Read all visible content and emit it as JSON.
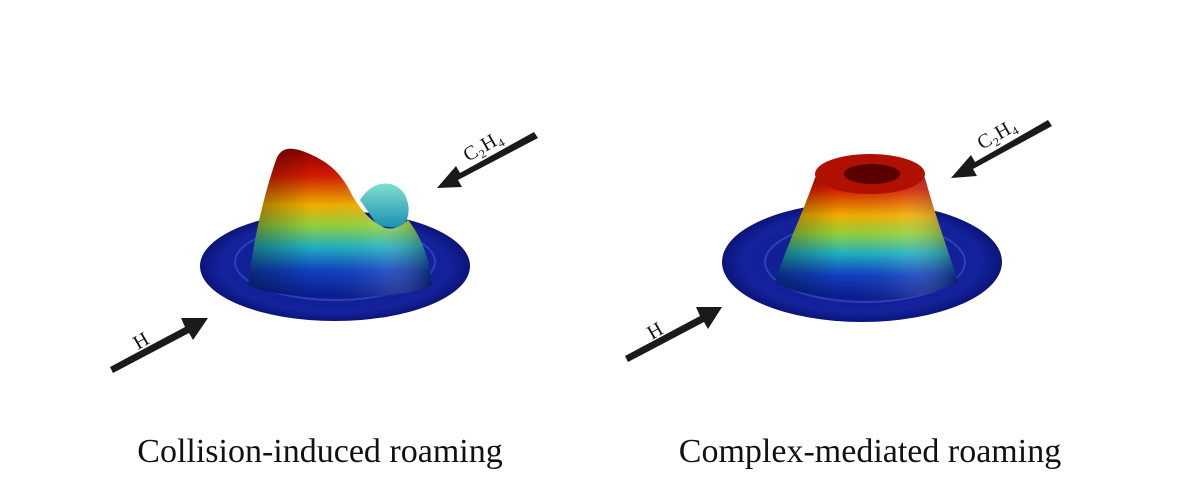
{
  "panels": [
    {
      "caption": "Collision-induced roaming",
      "reactant_a": "H",
      "reactant_b": "C₂H₄"
    },
    {
      "caption": "Complex-mediated roaming",
      "reactant_a": "H",
      "reactant_b": "C₂H₄"
    }
  ]
}
